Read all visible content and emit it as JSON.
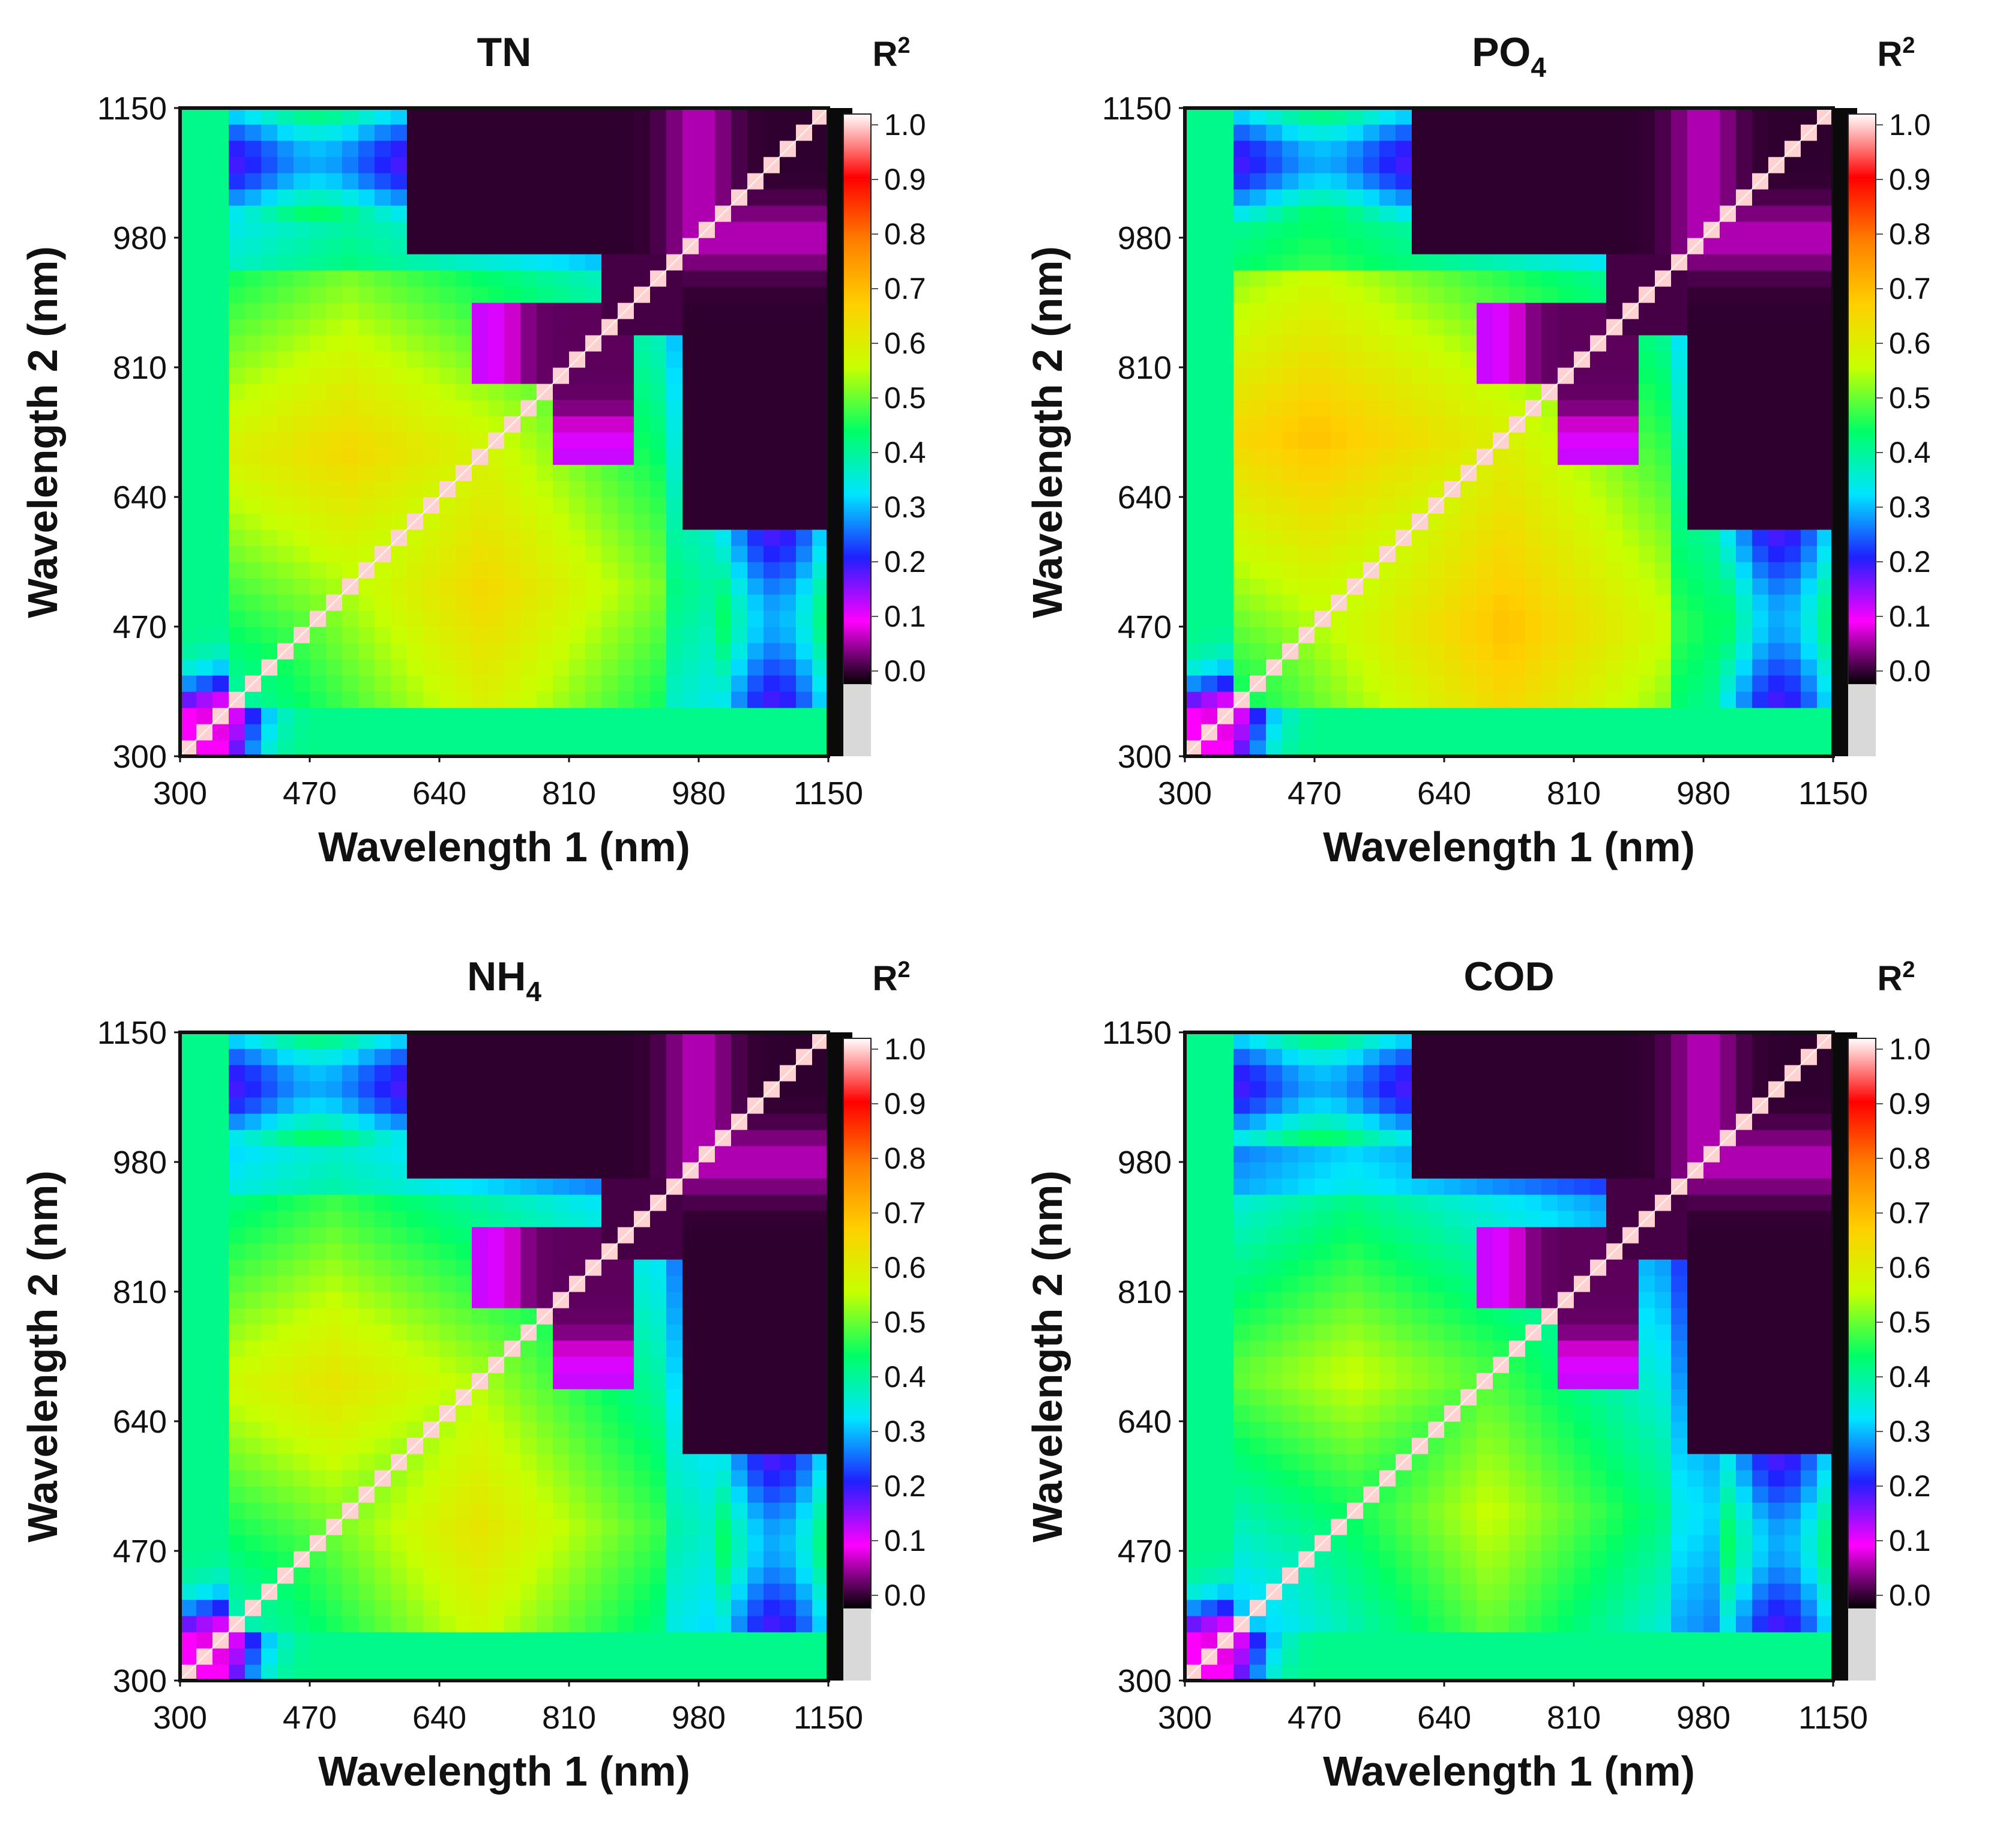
{
  "colors": {
    "scale": [
      "#000000",
      "#ff00ff",
      "#2020ff",
      "#00e5ff",
      "#00ff66",
      "#c8ff00",
      "#ffd000",
      "#ff7f00",
      "#ff0000",
      "#ffffff"
    ],
    "frame": "#111111",
    "divider": "#d9d9d9"
  },
  "chart_data": [
    {
      "type": "heatmap",
      "title": "TN",
      "xlabel": "Wavelength 1 (nm)",
      "ylabel": "Wavelength 2 (nm)",
      "xticks": [
        "300",
        "470",
        "640",
        "810",
        "980",
        "1150"
      ],
      "yticks": [
        "300",
        "470",
        "640",
        "810",
        "980",
        "1150"
      ],
      "xlim": [
        300,
        1150
      ],
      "ylim": [
        300,
        1150
      ],
      "colorbar": {
        "label": "R",
        "label_sup": "2",
        "ticks": [
          "1.0",
          "0.9",
          "0.8",
          "0.7",
          "0.6",
          "0.5",
          "0.4",
          "0.3",
          "0.2",
          "0.1",
          "0.0"
        ],
        "range": [
          0.0,
          1.0
        ]
      },
      "peak_r2": 0.65,
      "hotspot_wavelengths": [
        520,
        700
      ]
    },
    {
      "type": "heatmap",
      "title": "PO",
      "title_sub": "4",
      "xlabel": "Wavelength 1 (nm)",
      "ylabel": "Wavelength 2 (nm)",
      "xticks": [
        "300",
        "470",
        "640",
        "810",
        "980",
        "1150"
      ],
      "yticks": [
        "300",
        "470",
        "640",
        "810",
        "980",
        "1150"
      ],
      "xlim": [
        300,
        1150
      ],
      "ylim": [
        300,
        1150
      ],
      "colorbar": {
        "label": "R",
        "label_sup": "2",
        "ticks": [
          "1.0",
          "0.9",
          "0.8",
          "0.7",
          "0.6",
          "0.5",
          "0.4",
          "0.3",
          "0.2",
          "0.1",
          "0.0"
        ],
        "range": [
          0.0,
          1.0
        ]
      },
      "peak_r2": 0.69,
      "hotspot_wavelengths": [
        470,
        720
      ]
    },
    {
      "type": "heatmap",
      "title": "NH",
      "title_sub": "4",
      "xlabel": "Wavelength 1 (nm)",
      "ylabel": "Wavelength 2 (nm)",
      "xticks": [
        "300",
        "470",
        "640",
        "810",
        "980",
        "1150"
      ],
      "yticks": [
        "300",
        "470",
        "640",
        "810",
        "980",
        "1150"
      ],
      "xlim": [
        300,
        1150
      ],
      "ylim": [
        300,
        1150
      ],
      "colorbar": {
        "label": "R",
        "label_sup": "2",
        "ticks": [
          "1.0",
          "0.9",
          "0.8",
          "0.7",
          "0.6",
          "0.5",
          "0.4",
          "0.3",
          "0.2",
          "0.1",
          "0.0"
        ],
        "range": [
          0.0,
          1.0
        ]
      },
      "peak_r2": 0.62,
      "hotspot_wavelengths": [
        500,
        690
      ]
    },
    {
      "type": "heatmap",
      "title": "COD",
      "xlabel": "Wavelength 1 (nm)",
      "ylabel": "Wavelength 2 (nm)",
      "xticks": [
        "300",
        "470",
        "640",
        "810",
        "980",
        "1150"
      ],
      "yticks": [
        "300",
        "470",
        "640",
        "810",
        "980",
        "1150"
      ],
      "xlim": [
        300,
        1150
      ],
      "ylim": [
        300,
        1150
      ],
      "colorbar": {
        "label": "R",
        "label_sup": "2",
        "ticks": [
          "1.0",
          "0.9",
          "0.8",
          "0.7",
          "0.6",
          "0.5",
          "0.4",
          "0.3",
          "0.2",
          "0.1",
          "0.0"
        ],
        "range": [
          0.0,
          1.0
        ]
      },
      "peak_r2": 0.56,
      "hotspot_wavelengths": [
        520,
        700
      ]
    }
  ]
}
